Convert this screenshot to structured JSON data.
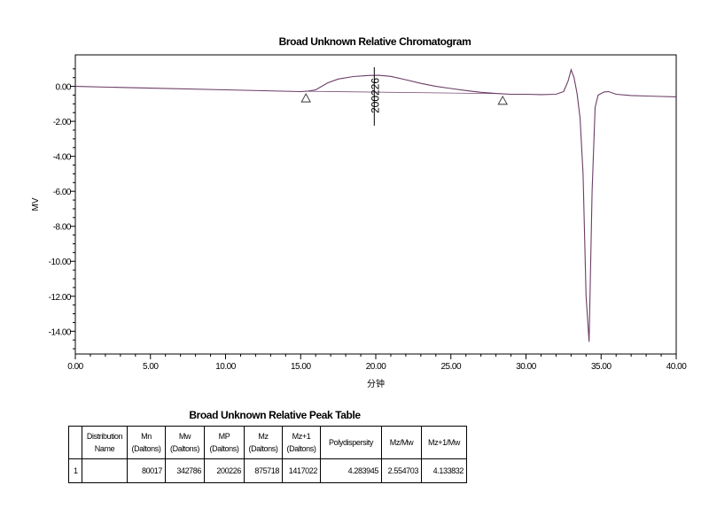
{
  "chart_data": {
    "type": "line",
    "title": "Broad Unknown Relative Chromatogram",
    "xlabel": "分钟",
    "ylabel": "MV",
    "xlim": [
      0,
      40
    ],
    "ylim": [
      -15.3,
      1.8
    ],
    "x_ticks": [
      "0.00",
      "5.00",
      "10.00",
      "15.00",
      "20.00",
      "25.00",
      "30.00",
      "35.00",
      "40.00"
    ],
    "y_ticks": [
      "0.00",
      "-2.00",
      "-4.00",
      "-6.00",
      "-8.00",
      "-10.00",
      "-12.00",
      "-14.00"
    ],
    "y_tick_values": [
      0,
      -2,
      -4,
      -6,
      -8,
      -10,
      -12,
      -14
    ],
    "series": [
      {
        "x": [
          0,
          5,
          10,
          15,
          15.5,
          16,
          16.8,
          17.5,
          18.5,
          19.5,
          20.2,
          21,
          22,
          23,
          24,
          25,
          26,
          27,
          28,
          28.5,
          29,
          30,
          31,
          32,
          32.5,
          32.8,
          33,
          33.2,
          33.4,
          33.6,
          33.8,
          34.0,
          34.2,
          34.4,
          34.6,
          34.8,
          35.2,
          35.5,
          36,
          37,
          38,
          39,
          40
        ],
        "y": [
          0.0,
          -0.1,
          -0.2,
          -0.3,
          -0.27,
          -0.2,
          0.2,
          0.42,
          0.56,
          0.62,
          0.63,
          0.57,
          0.38,
          0.17,
          0.0,
          -0.12,
          -0.24,
          -0.34,
          -0.4,
          -0.43,
          -0.45,
          -0.45,
          -0.47,
          -0.45,
          -0.3,
          0.3,
          0.95,
          0.5,
          -0.4,
          -1.8,
          -5.0,
          -12.0,
          -14.6,
          -6.0,
          -1.2,
          -0.5,
          -0.32,
          -0.3,
          -0.45,
          -0.52,
          -0.55,
          -0.58,
          -0.6
        ]
      }
    ],
    "baseline": {
      "x": [
        15.35,
        28.5
      ],
      "y": [
        -0.28,
        -0.42
      ]
    },
    "markers": [
      {
        "shape": "triangle",
        "x": 15.35,
        "y": -0.28
      },
      {
        "shape": "triangle",
        "x": 28.45,
        "y": -0.42
      }
    ],
    "peak_label": {
      "text": "200226",
      "x": 19.9
    }
  },
  "table": {
    "title": "Broad Unknown Relative Peak Table",
    "headers": [
      [
        "",
        ""
      ],
      [
        "Distribution",
        "Name"
      ],
      [
        "Mn",
        "(Daltons)"
      ],
      [
        "Mw",
        "(Daltons)"
      ],
      [
        "MP",
        "(Daltons)"
      ],
      [
        "Mz",
        "(Daltons)"
      ],
      [
        "Mz+1",
        "(Daltons)"
      ],
      [
        "Polydispersity",
        ""
      ],
      [
        "Mz/Mw",
        ""
      ],
      [
        "Mz+1/Mw",
        ""
      ]
    ],
    "rows": [
      [
        "1",
        "",
        "80017",
        "342786",
        "200226",
        "875718",
        "1417022",
        "4.283945",
        "2.554703",
        "4.133832"
      ]
    ]
  }
}
